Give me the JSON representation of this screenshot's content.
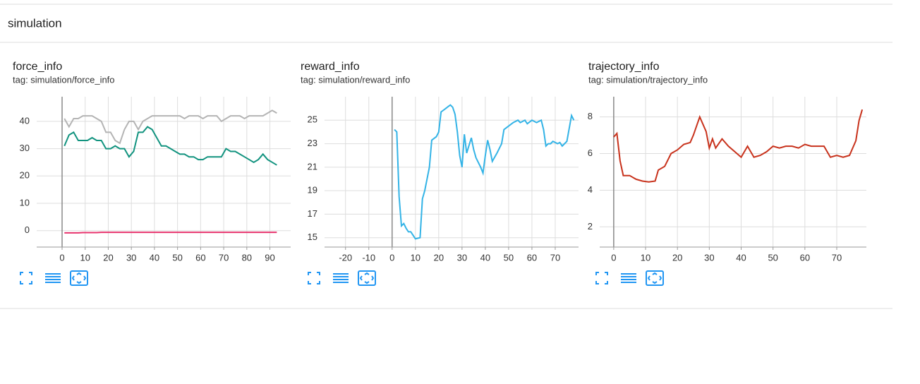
{
  "section": {
    "title": "simulation"
  },
  "chart_data": [
    {
      "type": "line",
      "title": "force_info",
      "subtitle": "tag: simulation/force_info",
      "x": [
        1,
        3,
        5,
        7,
        9,
        11,
        13,
        15,
        17,
        19,
        21,
        23,
        25,
        27,
        29,
        31,
        33,
        35,
        37,
        39,
        41,
        43,
        45,
        47,
        49,
        51,
        53,
        55,
        57,
        59,
        61,
        63,
        65,
        67,
        69,
        71,
        73,
        75,
        77,
        79,
        81,
        83,
        85,
        87,
        89,
        91,
        93
      ],
      "series": [
        {
          "color": "#b4b4b4",
          "values": [
            41,
            38,
            41,
            41,
            42,
            42,
            42,
            41,
            40,
            36,
            36,
            33,
            32,
            37,
            40,
            40,
            37,
            40,
            41,
            42,
            42,
            42,
            42,
            42,
            42,
            42,
            41,
            42,
            42,
            42,
            41,
            42,
            42,
            42,
            40,
            41,
            42,
            42,
            42,
            41,
            42,
            42,
            42,
            42,
            43,
            44,
            43
          ]
        },
        {
          "color": "#12937f",
          "values": [
            31,
            35,
            36,
            33,
            33,
            33,
            34,
            33,
            33,
            30,
            30,
            31,
            30,
            30,
            27,
            29,
            36,
            36,
            38,
            37,
            34,
            31,
            31,
            30,
            29,
            28,
            28,
            27,
            27,
            26,
            26,
            27,
            27,
            27,
            27,
            30,
            29,
            29,
            28,
            27,
            26,
            25,
            26,
            28,
            26,
            25,
            24
          ]
        },
        {
          "color": "#e8336d",
          "values": [
            -0.8,
            -0.8,
            -0.8,
            -0.8,
            -0.7,
            -0.7,
            -0.7,
            -0.7,
            -0.6,
            -0.6,
            -0.6,
            -0.6,
            -0.6,
            -0.6,
            -0.6,
            -0.6,
            -0.6,
            -0.6,
            -0.6,
            -0.6,
            -0.6,
            -0.6,
            -0.6,
            -0.6,
            -0.6,
            -0.6,
            -0.6,
            -0.6,
            -0.6,
            -0.6,
            -0.6,
            -0.6,
            -0.6,
            -0.6,
            -0.6,
            -0.6,
            -0.6,
            -0.6,
            -0.6,
            -0.6,
            -0.6,
            -0.6,
            -0.6,
            -0.6,
            -0.6,
            -0.6,
            -0.6
          ]
        }
      ],
      "xlim": [
        -11,
        99
      ],
      "xticks": [
        0,
        10,
        20,
        30,
        40,
        50,
        60,
        70,
        80,
        90
      ],
      "ylim": [
        -6,
        49
      ],
      "yticks": [
        0,
        10,
        20,
        30,
        40
      ],
      "grid": true
    },
    {
      "type": "line",
      "title": "reward_info",
      "subtitle": "tag: simulation/reward_info",
      "x": [
        1,
        2,
        3,
        4,
        5,
        6,
        7,
        8,
        9,
        10,
        12,
        13,
        14,
        16,
        17,
        19,
        20,
        21,
        23,
        25,
        26,
        27,
        28,
        29,
        30,
        31,
        32,
        34,
        35,
        36,
        38,
        39,
        40,
        41,
        42,
        43,
        45,
        47,
        48,
        50,
        52,
        54,
        55,
        57,
        58,
        60,
        62,
        64,
        65,
        66,
        67,
        68,
        69,
        71,
        72,
        73,
        75,
        76,
        77,
        78
      ],
      "series": [
        {
          "color": "#33b3e6",
          "values": [
            24.2,
            24,
            18.5,
            16,
            16.2,
            15.8,
            15.5,
            15.5,
            15.2,
            14.9,
            15,
            18.3,
            19,
            21,
            23.3,
            23.6,
            24,
            25.7,
            26,
            26.3,
            26.1,
            25.5,
            24,
            22,
            21,
            23.8,
            22.2,
            23.5,
            22.5,
            21.8,
            21,
            20.5,
            22,
            23.3,
            22.5,
            21.5,
            22.2,
            23,
            24.2,
            24.5,
            24.8,
            25,
            24.8,
            25,
            24.7,
            25,
            24.8,
            25,
            24.2,
            22.8,
            23,
            23,
            23.2,
            23,
            23.1,
            22.8,
            23.2,
            24.3,
            25.4,
            25
          ]
        }
      ],
      "xlim": [
        -29,
        80
      ],
      "xticks": [
        -20,
        -10,
        0,
        10,
        20,
        30,
        40,
        50,
        60,
        70
      ],
      "ylim": [
        14.2,
        27
      ],
      "yticks": [
        15,
        17,
        19,
        21,
        23,
        25
      ],
      "grid": true
    },
    {
      "type": "line",
      "title": "trajectory_info",
      "subtitle": "tag: simulation/trajectory_info",
      "x": [
        0,
        1,
        2,
        3,
        5,
        7,
        9,
        11,
        13,
        14,
        16,
        18,
        20,
        22,
        24,
        25,
        27,
        29,
        30,
        31,
        32,
        34,
        36,
        38,
        40,
        42,
        44,
        46,
        48,
        50,
        52,
        54,
        56,
        58,
        60,
        62,
        64,
        66,
        68,
        70,
        72,
        74,
        76,
        77,
        78
      ],
      "series": [
        {
          "color": "#c8321c",
          "values": [
            6.9,
            7.1,
            5.6,
            4.8,
            4.8,
            4.6,
            4.5,
            4.45,
            4.5,
            5.1,
            5.3,
            6,
            6.2,
            6.5,
            6.6,
            7,
            8,
            7.2,
            6.3,
            6.8,
            6.3,
            6.8,
            6.4,
            6.1,
            5.8,
            6.4,
            5.8,
            5.9,
            6.1,
            6.4,
            6.3,
            6.4,
            6.4,
            6.3,
            6.5,
            6.4,
            6.4,
            6.4,
            5.8,
            5.9,
            5.8,
            5.9,
            6.7,
            7.8,
            8.4
          ]
        }
      ],
      "xlim": [
        -4.4,
        79.3
      ],
      "xticks": [
        0,
        10,
        20,
        30,
        40,
        50,
        60,
        70
      ],
      "ylim": [
        0.9,
        9.1
      ],
      "yticks": [
        2,
        4,
        6,
        8
      ],
      "grid": true
    }
  ]
}
